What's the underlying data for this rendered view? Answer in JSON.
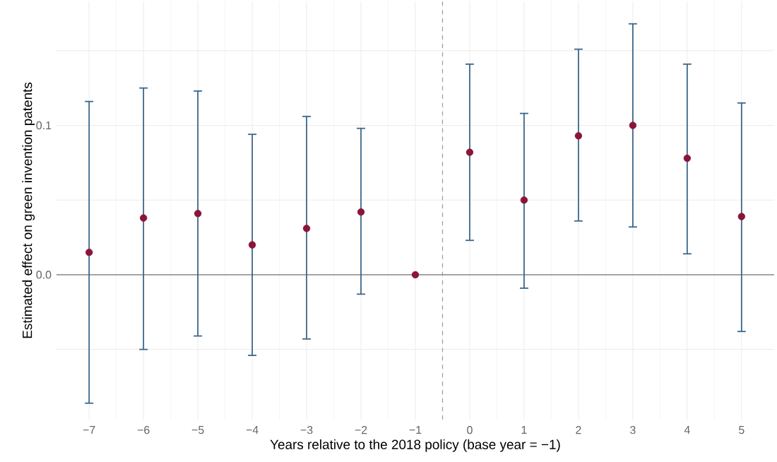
{
  "chart_data": {
    "type": "scatter",
    "xlabel": "Years relative to the 2018 policy (base year = −1)",
    "ylabel": "Estimated effect on green invention patents",
    "x": [
      -7,
      -6,
      -5,
      -4,
      -3,
      -2,
      -1,
      0,
      1,
      2,
      3,
      4,
      5
    ],
    "series": [
      {
        "color": "#8b1538",
        "values": [
          0.015,
          0.038,
          0.041,
          0.02,
          0.031,
          0.042,
          0.0,
          0.082,
          0.05,
          0.093,
          0.1,
          0.078,
          0.039
        ],
        "errors": [
          [
            -0.086,
            0.116
          ],
          [
            -0.05,
            0.125
          ],
          [
            -0.041,
            0.123
          ],
          [
            -0.054,
            0.094
          ],
          [
            -0.043,
            0.106
          ],
          [
            -0.013,
            0.098
          ],
          null,
          [
            0.023,
            0.141
          ],
          [
            -0.009,
            0.108
          ],
          [
            0.036,
            0.151
          ],
          [
            0.032,
            0.168
          ],
          [
            0.014,
            0.141
          ],
          [
            -0.038,
            0.115
          ]
        ]
      }
    ],
    "xlim": [
      -7.6,
      5.6
    ],
    "ylim": [
      -0.097,
      0.183
    ],
    "xticks": [
      {
        "value": -7,
        "label": "−7"
      },
      {
        "value": -6,
        "label": "−6"
      },
      {
        "value": -5,
        "label": "−5"
      },
      {
        "value": -4,
        "label": "−4"
      },
      {
        "value": -3,
        "label": "−3"
      },
      {
        "value": -2,
        "label": "−2"
      },
      {
        "value": -1,
        "label": "−1"
      },
      0,
      1,
      2,
      3,
      4,
      5
    ],
    "yticks": [
      {
        "value": -0.05,
        "label": null
      },
      {
        "value": 0,
        "label": "0.0"
      },
      {
        "value": 0.05,
        "label": null
      },
      {
        "value": 0.1,
        "label": "0.1"
      },
      {
        "value": 0.15,
        "label": null
      }
    ],
    "grid": true,
    "marker": "circle",
    "ref_lines": [
      {
        "axis": "y",
        "value": 0,
        "color": "#999999",
        "line_style": "solid"
      },
      {
        "axis": "x",
        "value": -0.5,
        "color": "#999999",
        "line_style": "dashed"
      }
    ]
  }
}
